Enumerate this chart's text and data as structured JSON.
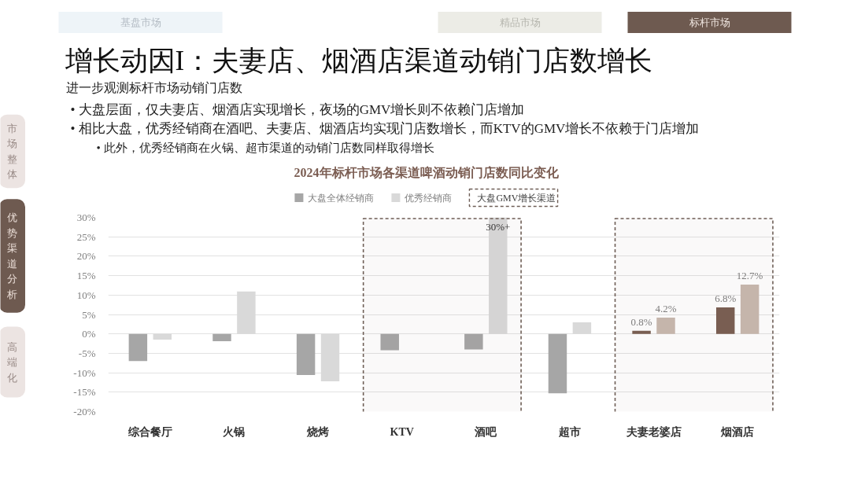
{
  "chart_data": {
    "type": "bar",
    "title": "2024年标杆市场各渠道啤酒动销门店数同比变化",
    "categories": [
      "综合餐厅",
      "火锅",
      "烧烤",
      "KTV",
      "酒吧",
      "超市",
      "夫妻老婆店",
      "烟酒店"
    ],
    "series": [
      {
        "name": "大盘全体经销商",
        "color": "#a6a6a6",
        "colors": [
          "#a6a6a6",
          "#a6a6a6",
          "#a6a6a6",
          "#a6a6a6",
          "#a6a6a6",
          "#a6a6a6",
          "#7a5f52",
          "#7a5f52"
        ],
        "values": [
          -7.0,
          -1.9,
          -10.6,
          -4.2,
          -4.0,
          -15.3,
          0.8,
          6.8
        ],
        "value_labels": [
          null,
          null,
          null,
          null,
          null,
          null,
          "0.8%",
          "6.8%"
        ]
      },
      {
        "name": "优秀经销商",
        "color": "#d9d9d9",
        "colors": [
          "#d9d9d9",
          "#d9d9d9",
          "#d9d9d9",
          "#d9d9d9",
          "#d9d9d9",
          "#d9d9d9",
          "#c9b9af",
          "#c9b9af"
        ],
        "values": [
          -1.5,
          10.9,
          -12.2,
          null,
          30,
          3.0,
          4.2,
          12.7
        ],
        "value_labels": [
          null,
          null,
          null,
          null,
          "30%+",
          null,
          "4.2%",
          "12.7%"
        ]
      }
    ],
    "ylim": [
      -20,
      30
    ],
    "yticks": [
      {
        "value": -20,
        "label": "-20%"
      },
      {
        "value": -15,
        "label": "-15%"
      },
      {
        "value": -10,
        "label": "-10%"
      },
      {
        "value": -5,
        "label": "-5%"
      },
      {
        "value": 0,
        "label": "0%"
      },
      {
        "value": 5,
        "label": "5%"
      },
      {
        "value": 10,
        "label": "10%"
      },
      {
        "value": 15,
        "label": "15%"
      },
      {
        "value": 20,
        "label": "20%"
      },
      {
        "value": 25,
        "label": "25%"
      },
      {
        "value": 30,
        "label": "30%"
      }
    ],
    "grid": "y",
    "legend": "top",
    "bands": [
      {
        "axis": "x",
        "from": "KTV",
        "to": "酒吧",
        "label": "大盘GMV增长渠道",
        "color": "#6e5e56"
      },
      {
        "axis": "x",
        "from": "夫妻老婆店",
        "to": "烟酒店",
        "color": "#6e5e56"
      }
    ],
    "annotations": [
      "基盘市场",
      "精品市场",
      "标杆市场",
      "增长动因I：夫妻店、烟酒店渠道动销门店数增长",
      "进一步观测标杆市场动销门店数",
      "• 大盘层面，仅夫妻店、烟酒店实现增长，夜场的GMV增长则不依赖门店增加",
      "• 相比大盘，优秀经销商在酒吧、夫妻店、烟酒店均实现门店数增长，而KTV的GMV增长不依赖于门店增加",
      "• 此外，优秀经销商在火锅、超市渠道的动销门店数同样取得增长",
      "市场整体",
      "优势渠道分析",
      "高端化"
    ]
  }
}
